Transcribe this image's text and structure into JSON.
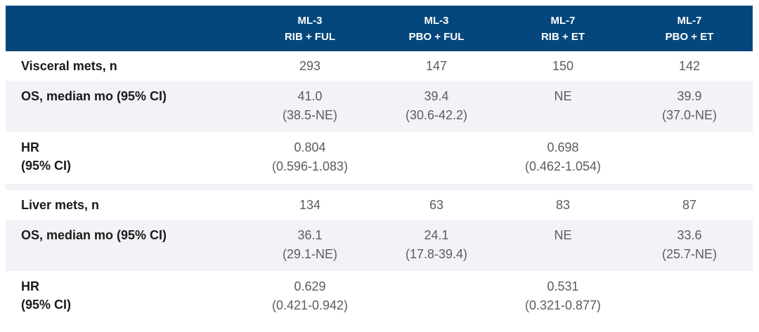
{
  "colors": {
    "header_bg": "#05477c",
    "shaded_row_bg": "#f2f2f7",
    "header_text": "#ffffff",
    "label_text": "#1a1a1a",
    "value_text": "#5b5b63"
  },
  "chart_data": {
    "type": "table",
    "title": "",
    "columns": [
      {
        "trial": "ML-3",
        "arm": "RIB + FUL"
      },
      {
        "trial": "ML-3",
        "arm": "PBO + FUL"
      },
      {
        "trial": "ML-7",
        "arm": "RIB + ET"
      },
      {
        "trial": "ML-7",
        "arm": "PBO + ET"
      }
    ],
    "sections": [
      {
        "name": "Visceral mets",
        "rows": [
          {
            "label": {
              "line1": "Visceral mets, n",
              "line2": ""
            },
            "shaded": false,
            "cells": [
              {
                "line1": "293",
                "line2": ""
              },
              {
                "line1": "147",
                "line2": ""
              },
              {
                "line1": "150",
                "line2": ""
              },
              {
                "line1": "142",
                "line2": ""
              }
            ]
          },
          {
            "label": {
              "line1": "OS, median mo (95% CI)",
              "line2": ""
            },
            "shaded": true,
            "cells": [
              {
                "line1": "41.0",
                "line2": "(38.5-NE)"
              },
              {
                "line1": "39.4",
                "line2": "(30.6-42.2)"
              },
              {
                "line1": "NE",
                "line2": ""
              },
              {
                "line1": "39.9",
                "line2": "(37.0-NE)"
              }
            ]
          },
          {
            "label": {
              "line1": "HR",
              "line2": "(95% CI)"
            },
            "shaded": false,
            "cells": [
              {
                "line1": "0.804",
                "line2": "(0.596-1.083)"
              },
              {
                "line1": "",
                "line2": ""
              },
              {
                "line1": "0.698",
                "line2": "(0.462-1.054)"
              },
              {
                "line1": "",
                "line2": ""
              }
            ]
          }
        ]
      },
      {
        "name": "Liver mets",
        "rows": [
          {
            "label": {
              "line1": "Liver mets, n",
              "line2": ""
            },
            "shaded": false,
            "cells": [
              {
                "line1": "134",
                "line2": ""
              },
              {
                "line1": "63",
                "line2": ""
              },
              {
                "line1": "83",
                "line2": ""
              },
              {
                "line1": "87",
                "line2": ""
              }
            ]
          },
          {
            "label": {
              "line1": "OS, median mo (95% CI)",
              "line2": ""
            },
            "shaded": true,
            "cells": [
              {
                "line1": "36.1",
                "line2": "(29.1-NE)"
              },
              {
                "line1": "24.1",
                "line2": "(17.8-39.4)"
              },
              {
                "line1": "NE",
                "line2": ""
              },
              {
                "line1": "33.6",
                "line2": "(25.7-NE)"
              }
            ]
          },
          {
            "label": {
              "line1": "HR",
              "line2": "(95% CI)"
            },
            "shaded": false,
            "cells": [
              {
                "line1": "0.629",
                "line2": "(0.421-0.942)"
              },
              {
                "line1": "",
                "line2": ""
              },
              {
                "line1": "0.531",
                "line2": "(0.321-0.877)"
              },
              {
                "line1": "",
                "line2": ""
              }
            ]
          }
        ]
      }
    ]
  }
}
